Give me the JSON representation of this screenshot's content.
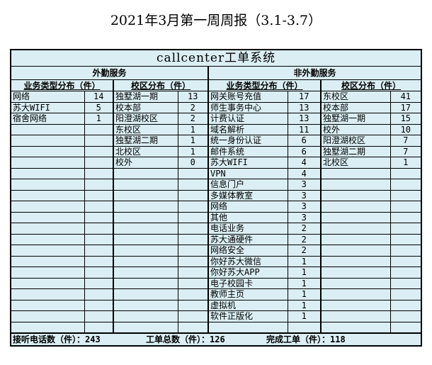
{
  "title": "2021年3月第一周周报（3.1-3.7）",
  "system_title": "callcenter工单系统",
  "field_service": {
    "label": "外勤服务",
    "type_header": "业务类型分布（件）",
    "campus_header": "校区分布（件）",
    "types": [
      {
        "name": "网络",
        "count": "14"
      },
      {
        "name": "苏大WIFI",
        "count": "5"
      },
      {
        "name": "宿舍网络",
        "count": "1"
      }
    ],
    "campuses": [
      {
        "name": "独墅湖一期",
        "count": "13"
      },
      {
        "name": "校本部",
        "count": "2"
      },
      {
        "name": "阳澄湖校区",
        "count": "2"
      },
      {
        "name": "东校区",
        "count": "1"
      },
      {
        "name": "独墅湖二期",
        "count": "1"
      },
      {
        "name": "北校区",
        "count": "1"
      },
      {
        "name": "校外",
        "count": "0"
      }
    ]
  },
  "non_field_service": {
    "label": "非外勤服务",
    "type_header": "业务类型分布（件）",
    "campus_header": "校区分布（件）",
    "types": [
      {
        "name": "网关账号充值",
        "count": "17"
      },
      {
        "name": "师生事务中心",
        "count": "13"
      },
      {
        "name": "计费认证",
        "count": "13"
      },
      {
        "name": "域名解析",
        "count": "11"
      },
      {
        "name": "统一身份认证",
        "count": "6"
      },
      {
        "name": "邮件系统",
        "count": "6"
      },
      {
        "name": "苏大WIFI",
        "count": "4"
      },
      {
        "name": "VPN",
        "count": "4"
      },
      {
        "name": "信息门户",
        "count": "3"
      },
      {
        "name": "多媒体教室",
        "count": "3"
      },
      {
        "name": "网络",
        "count": "3"
      },
      {
        "name": "其他",
        "count": "3"
      },
      {
        "name": "电话业务",
        "count": "2"
      },
      {
        "name": "苏大通硬件",
        "count": "2"
      },
      {
        "name": "网络安全",
        "count": "2"
      },
      {
        "name": "你好苏大微信",
        "count": "1"
      },
      {
        "name": "你好苏大APP",
        "count": "1"
      },
      {
        "name": "电子校园卡",
        "count": "1"
      },
      {
        "name": "教师主页",
        "count": "1"
      },
      {
        "name": "虚拟机",
        "count": "1"
      },
      {
        "name": "软件正版化",
        "count": "1"
      }
    ],
    "campuses": [
      {
        "name": "东校区",
        "count": "41"
      },
      {
        "name": "校本部",
        "count": "17"
      },
      {
        "name": "独墅湖一期",
        "count": "15"
      },
      {
        "name": "校外",
        "count": "10"
      },
      {
        "name": "阳澄湖校区",
        "count": "7"
      },
      {
        "name": "独墅湖二期",
        "count": "7"
      },
      {
        "name": "北校区",
        "count": "1"
      }
    ]
  },
  "footer": {
    "calls": "接听电话数（件）：243",
    "tickets": "工单总数（件）：126",
    "completed": "完成工单（件）：118"
  },
  "colors": {
    "cell_background": "#daeef3",
    "border": "#000000"
  }
}
